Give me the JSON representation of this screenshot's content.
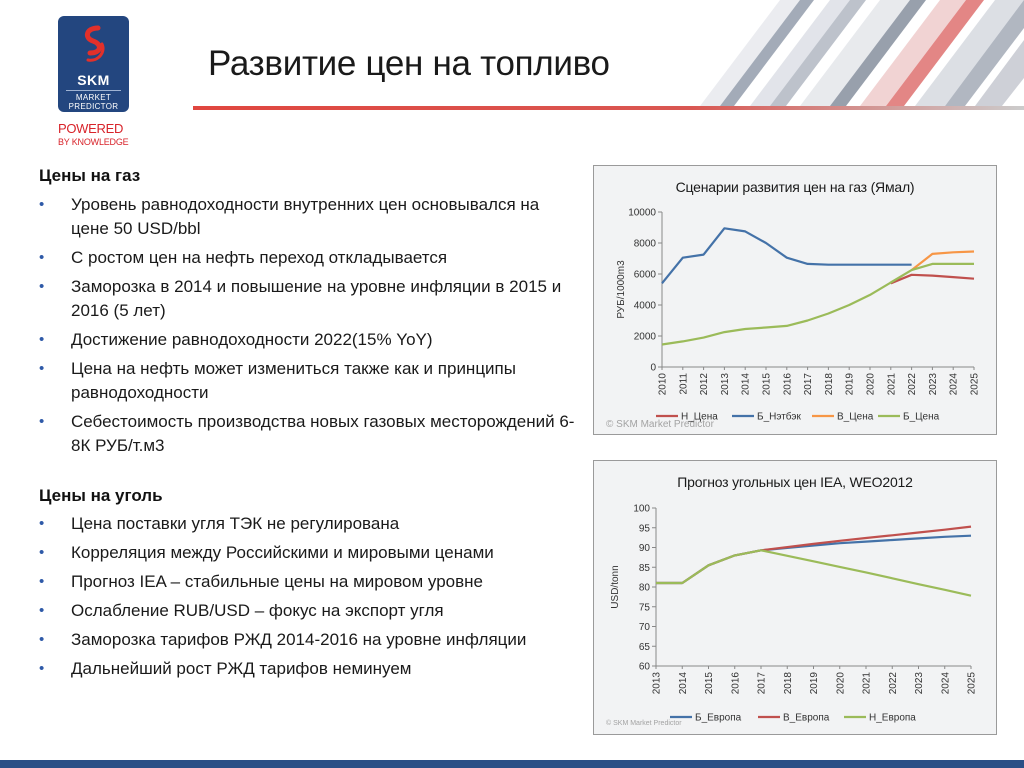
{
  "header": {
    "title": "Развитие цен на топливо",
    "logo": {
      "brand": "SKM",
      "line1": "MARKET",
      "line2": "PREDICTOR",
      "powered": "POWERED",
      "by_knowledge": "BY KNOWLEDGE"
    }
  },
  "gas_section": {
    "heading": "Цены на газ",
    "bullets": [
      "Уровень равнодоходности внутренних цен основывался на цене 50 USD/bbl",
      "С ростом цен на нефть переход откладывается",
      "Заморозка в 2014 и повышение на уровне инфляции в 2015 и 2016 (5 лет)",
      "Достижение равнодоходности 2022(15% YoY)",
      "Цена на нефть может измениться также как и принципы равнодоходности",
      "Себестоимость производства новых  газовых месторождений 6-8К РУБ/т.м3"
    ]
  },
  "coal_section": {
    "heading": "Цены на уголь",
    "bullets": [
      "Цена поставки угля ТЭК не регулирована",
      "Корреляция между Российскими и мировыми ценами",
      "Прогноз IEA – стабильные цены на мировом уровне",
      "Ослабление RUB/USD – фокус на экспорт угля",
      "Заморозка тарифов РЖД 2014-2016 на уровне инфляции",
      "Дальнейший рост РЖД тарифов неминуем"
    ]
  },
  "watermark": "© SKM Market Predictor",
  "colors": {
    "red": "#c0504d",
    "blue": "#4472a8",
    "orange": "#f79646",
    "green": "#9bbb59",
    "bullet": "#2f5aa8",
    "accent": "#d8232a",
    "bottom_bar": "#2a4f86"
  },
  "chart_data": [
    {
      "type": "line",
      "title": "Сценарии развития цен на газ (Ямал)",
      "ylabel": "РУБ/1000m3",
      "xlabel": "",
      "x": [
        "2010",
        "2011",
        "2012",
        "2013",
        "2014",
        "2015",
        "2016",
        "2017",
        "2018",
        "2019",
        "2020",
        "2021",
        "2022",
        "2023",
        "2024",
        "2025"
      ],
      "ylim": [
        0,
        10000
      ],
      "yticks": [
        0,
        2000,
        4000,
        6000,
        8000,
        10000
      ],
      "grid": false,
      "legend_position": "bottom",
      "series": [
        {
          "name": "Н_Цена",
          "color": "#c0504d",
          "values": [
            null,
            null,
            null,
            null,
            null,
            null,
            null,
            null,
            null,
            null,
            null,
            5400,
            5950,
            5900,
            5800,
            5700
          ]
        },
        {
          "name": "Б_Нэтбэк",
          "color": "#4472a8",
          "values": [
            5400,
            7050,
            7250,
            8950,
            8750,
            8000,
            7050,
            6650,
            6600,
            6600,
            6600,
            6600,
            6600,
            null,
            null,
            null
          ]
        },
        {
          "name": "В_Цена",
          "color": "#f79646",
          "values": [
            null,
            null,
            null,
            null,
            null,
            null,
            null,
            null,
            null,
            null,
            null,
            null,
            6250,
            7300,
            7400,
            7450
          ]
        },
        {
          "name": "Б_Цена",
          "color": "#9bbb59",
          "values": [
            1450,
            1650,
            1900,
            2250,
            2450,
            2550,
            2650,
            3000,
            3450,
            4000,
            4650,
            5450,
            6250,
            6650,
            6650,
            6650
          ]
        }
      ]
    },
    {
      "type": "line",
      "title": "Прогноз угольных цен IEA, WEO2012",
      "ylabel": "USD/tonn",
      "xlabel": "",
      "x": [
        "2013",
        "2014",
        "2015",
        "2016",
        "2017",
        "2018",
        "2019",
        "2020",
        "2021",
        "2022",
        "2023",
        "2024",
        "2025"
      ],
      "ylim": [
        60,
        100
      ],
      "yticks": [
        60,
        65,
        70,
        75,
        80,
        85,
        90,
        95,
        100
      ],
      "grid": false,
      "legend_position": "bottom",
      "series": [
        {
          "name": "Б_Европа",
          "color": "#4472a8",
          "values": [
            81,
            81,
            85.5,
            88,
            89.3,
            89.9,
            90.5,
            91.1,
            91.5,
            91.9,
            92.3,
            92.7,
            93
          ]
        },
        {
          "name": "В_Европа",
          "color": "#c0504d",
          "values": [
            81,
            81,
            85.5,
            88,
            89.3,
            90.1,
            90.9,
            91.7,
            92.4,
            93.1,
            93.8,
            94.5,
            95.3
          ]
        },
        {
          "name": "Н_Европа",
          "color": "#9bbb59",
          "values": [
            81,
            81,
            85.5,
            88,
            89.3,
            87.9,
            86.5,
            85.1,
            83.7,
            82.2,
            80.7,
            79.3,
            77.8
          ]
        }
      ]
    }
  ]
}
